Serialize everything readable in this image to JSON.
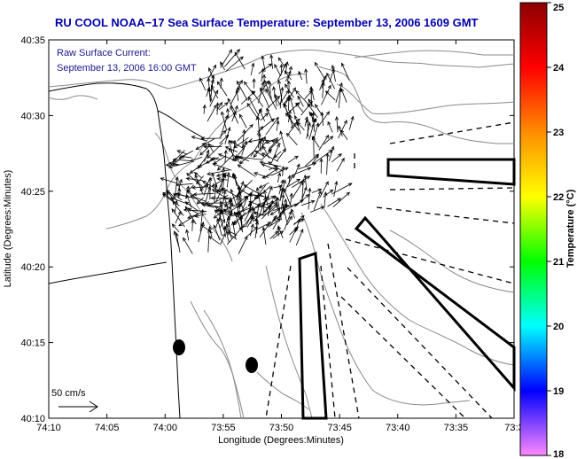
{
  "title": "RU COOL  NOAA−17  Sea Surface Temperature:  September 13, 2006 1609 GMT",
  "current_legend": {
    "line1": "Raw Surface Current:",
    "line2": "September 13, 2006 16:00 GMT"
  },
  "scale_label": "50 cm/s",
  "xlabel": "Longitude (Degrees:Minutes)",
  "ylabel": "Latitude (Degrees:Minutes)",
  "x_ticks": [
    "74:10",
    "74:05",
    "74:00",
    "73:55",
    "73:50",
    "73:45",
    "73:40",
    "73:35",
    "73:3"
  ],
  "y_ticks": [
    "40:35",
    "40:30",
    "40:25",
    "40:20",
    "40:15",
    "40:10"
  ],
  "colorbar": {
    "label": "Temperature (°C)",
    "min": 18,
    "max": 25,
    "ticks": [
      "25",
      "24",
      "23",
      "22",
      "21",
      "20",
      "19",
      "18"
    ],
    "colors": [
      "#8b0000",
      "#ff0000",
      "#ff8c00",
      "#ffff00",
      "#00ff00",
      "#00ffff",
      "#0000ff",
      "#ff88ff"
    ]
  }
}
